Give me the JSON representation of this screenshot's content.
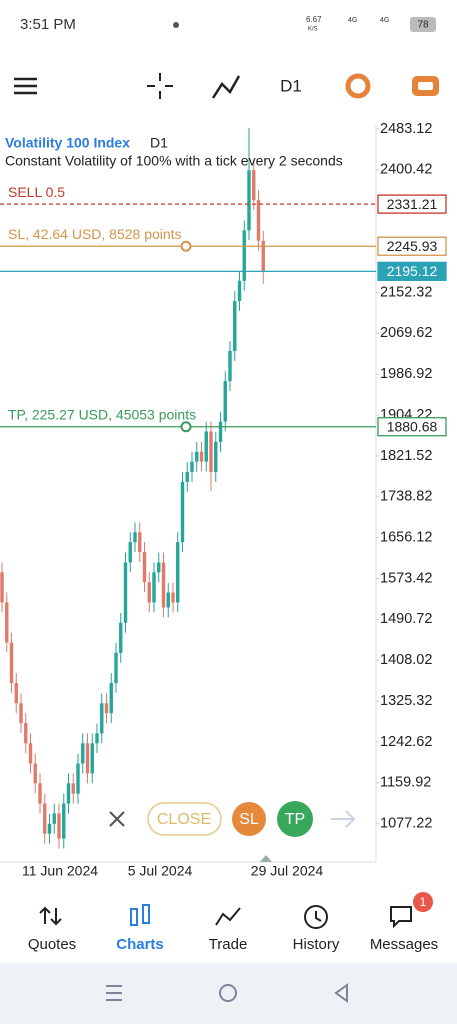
{
  "status_bar": {
    "time": "3:51 PM",
    "net_speed": "6.67",
    "net_unit": "K/S",
    "network_1": "4G",
    "network_2": "4G",
    "battery": "78"
  },
  "toolbar": {
    "timeframe": "D1"
  },
  "chart_data": {
    "type": "candlestick",
    "symbol": "Volatility 100 Index",
    "timeframe": "D1",
    "description": "Constant Volatility of 100% with a tick every 2 seconds",
    "open": [
      1586,
      1525,
      1444,
      1362,
      1321,
      1281,
      1240,
      1199,
      1159,
      1118,
      1057,
      1077,
      1098,
      1047,
      1118,
      1159,
      1138,
      1199,
      1240,
      1179,
      1240,
      1260,
      1321,
      1301,
      1362,
      1423,
      1484,
      1606,
      1647,
      1667,
      1627,
      1566,
      1525,
      1586,
      1606,
      1515,
      1545,
      1525,
      1647,
      1769,
      1789,
      1810,
      1830,
      1810,
      1871,
      1789,
      1850,
      1891,
      1973,
      2034,
      2135,
      2176,
      2278,
      2400,
      2339,
      2257
    ],
    "high": [
      1606,
      1545,
      1464,
      1382,
      1341,
      1301,
      1260,
      1219,
      1179,
      1138,
      1097,
      1118,
      1118,
      1138,
      1179,
      1179,
      1219,
      1260,
      1260,
      1260,
      1280,
      1341,
      1341,
      1382,
      1443,
      1504,
      1626,
      1667,
      1687,
      1687,
      1647,
      1586,
      1606,
      1626,
      1626,
      1565,
      1565,
      1667,
      1789,
      1809,
      1830,
      1850,
      1850,
      1891,
      1891,
      1870,
      1911,
      1993,
      2054,
      2155,
      2196,
      2298,
      2485,
      2420,
      2359,
      2277
    ],
    "low": [
      1505,
      1424,
      1342,
      1301,
      1261,
      1220,
      1179,
      1139,
      1098,
      1037,
      1037,
      1057,
      1027,
      1027,
      1098,
      1118,
      1118,
      1179,
      1159,
      1159,
      1220,
      1240,
      1281,
      1281,
      1342,
      1403,
      1464,
      1586,
      1627,
      1607,
      1546,
      1505,
      1505,
      1566,
      1495,
      1495,
      1505,
      1505,
      1627,
      1749,
      1769,
      1790,
      1790,
      1790,
      1750,
      1769,
      1830,
      1871,
      1953,
      2014,
      2115,
      2156,
      2258,
      2319,
      2237,
      2170
    ],
    "close": [
      1525,
      1444,
      1362,
      1321,
      1281,
      1240,
      1199,
      1159,
      1118,
      1057,
      1077,
      1098,
      1047,
      1118,
      1159,
      1138,
      1199,
      1240,
      1179,
      1240,
      1260,
      1321,
      1301,
      1362,
      1423,
      1484,
      1606,
      1647,
      1667,
      1627,
      1566,
      1525,
      1586,
      1606,
      1515,
      1545,
      1525,
      1647,
      1769,
      1789,
      1810,
      1830,
      1810,
      1871,
      1789,
      1850,
      1891,
      1973,
      2034,
      2135,
      2176,
      2278,
      2400,
      2339,
      2257,
      2195.12
    ],
    "up_color": "#26a69a",
    "down_color": "#e07b6a",
    "ylim": [
      1003.8,
      2491.3
    ],
    "yticks": [
      2483.12,
      2400.42,
      2152.32,
      2069.62,
      1986.92,
      1904.22,
      1821.52,
      1738.82,
      1656.12,
      1573.42,
      1490.72,
      1408.02,
      1325.32,
      1242.62,
      1159.92,
      1077.22
    ],
    "x_labels": [
      "11 Jun 2024",
      "5 Jul 2024",
      "29 Jul 2024"
    ],
    "levels": [
      {
        "label": "SELL 0.5",
        "value": 2331.21,
        "color": "#c0392b",
        "style": "dashed"
      },
      {
        "label": "SL, 42.64 USD, 8528 points",
        "value": 2245.93,
        "color": "#d4954a",
        "style": "solid"
      },
      {
        "value": 2195.12,
        "color": "#29a3b5",
        "style": "solid"
      },
      {
        "label": "TP, 225.27 USD, 45053 points",
        "value": 1880.68,
        "color": "#3a9a5b",
        "style": "solid"
      }
    ]
  },
  "trade_buttons": {
    "close": "CLOSE",
    "sl": "SL",
    "tp": "TP"
  },
  "nav": [
    {
      "label": "Quotes"
    },
    {
      "label": "Charts"
    },
    {
      "label": "Trade"
    },
    {
      "label": "History"
    },
    {
      "label": "Messages",
      "badge": "1"
    }
  ]
}
